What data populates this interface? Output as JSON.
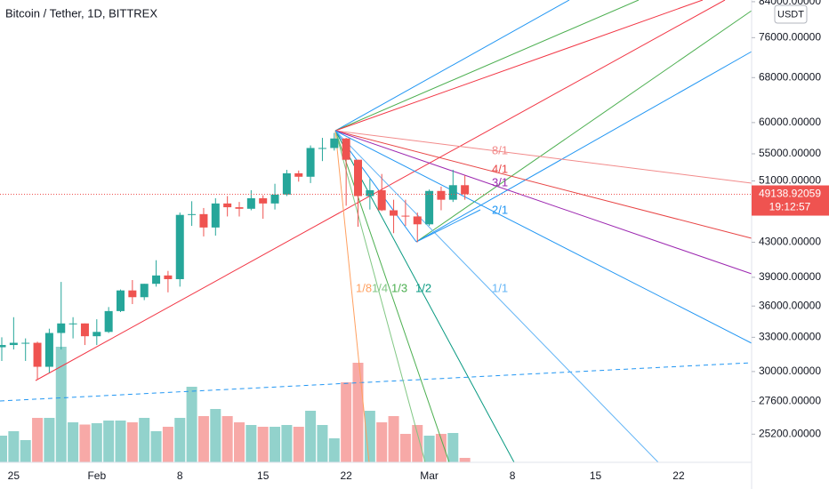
{
  "chart_data": {
    "type": "candlestick",
    "title": "Bitcoin / Tether, 1D, BITTREX",
    "currency": "USDT",
    "countdown": "19:12:57",
    "categories": [
      null,
      "25",
      null,
      null,
      null,
      null,
      null,
      null,
      "Feb",
      null,
      null,
      null,
      null,
      null,
      null,
      "8",
      null,
      null,
      null,
      null,
      null,
      null,
      "15",
      null,
      null,
      null,
      null,
      null,
      null,
      "22",
      null,
      null,
      null,
      null,
      null,
      null,
      "Mar",
      null,
      null,
      null,
      null,
      null,
      null,
      "8",
      null,
      null,
      null,
      null,
      null,
      null,
      "15",
      null,
      null,
      null,
      null,
      null,
      null,
      "22",
      null,
      null,
      null,
      null,
      null
    ],
    "open": [
      32100,
      32300,
      32500,
      32500,
      30400,
      33400,
      34300,
      34300,
      33100,
      33500,
      35500,
      37600,
      36900,
      38300,
      39200,
      38800,
      46400,
      46500,
      44800,
      47900,
      47400,
      47200,
      48600,
      47900,
      49100,
      52100,
      51600,
      55900,
      55900,
      57400,
      54100,
      48900,
      49700,
      47000,
      46300,
      46200,
      45200,
      49600,
      48400,
      50400,
      null,
      null,
      null,
      null,
      null,
      null,
      null,
      null,
      null,
      null,
      null,
      null,
      null,
      null,
      null,
      null,
      null,
      null,
      null,
      null,
      null,
      null,
      null
    ],
    "high": [
      33000,
      34900,
      32900,
      32600,
      33800,
      38500,
      34900,
      34300,
      34700,
      35900,
      37700,
      38700,
      38300,
      40900,
      39700,
      46700,
      48200,
      47300,
      48600,
      48900,
      48100,
      49700,
      49000,
      50600,
      52600,
      52500,
      56300,
      57500,
      58300,
      57500,
      54100,
      51300,
      52000,
      48400,
      48400,
      46700,
      49800,
      50200,
      52600,
      51800,
      null,
      null,
      null,
      null,
      null,
      null,
      null,
      null,
      null,
      null,
      null,
      null,
      null,
      null,
      null,
      null,
      null,
      null,
      null,
      null,
      null,
      null,
      null
    ],
    "low": [
      30900,
      31900,
      30900,
      29300,
      29900,
      31900,
      32900,
      32300,
      32300,
      33400,
      35400,
      36200,
      36600,
      38000,
      37400,
      38000,
      45000,
      43700,
      43800,
      46200,
      46200,
      47000,
      45900,
      47100,
      48900,
      50900,
      50700,
      53900,
      55500,
      47600,
      44900,
      47100,
      46900,
      44100,
      45000,
      43000,
      45000,
      47000,
      48100,
      48400,
      null,
      null,
      null,
      null,
      null,
      null,
      null,
      null,
      null,
      null,
      null,
      null,
      null,
      null,
      null,
      null,
      null,
      null,
      null,
      null,
      null,
      null,
      null
    ],
    "close": [
      32300,
      32500,
      32500,
      30400,
      33400,
      34300,
      34300,
      33100,
      33500,
      35500,
      37600,
      36900,
      38300,
      39200,
      38800,
      46400,
      46500,
      44800,
      47900,
      47400,
      47200,
      48600,
      47900,
      49100,
      52100,
      51600,
      55900,
      55900,
      57400,
      54100,
      48900,
      49700,
      47000,
      46300,
      46200,
      45200,
      49600,
      48400,
      50400,
      49138.92059,
      null,
      null,
      null,
      null,
      null,
      null,
      null,
      null,
      null,
      null,
      null,
      null,
      null,
      null,
      null,
      null,
      null,
      null,
      null,
      null,
      null,
      null,
      null
    ],
    "volume": [
      1200,
      1400,
      1000,
      2000,
      2000,
      5200,
      1800,
      1700,
      1760,
      1880,
      1880,
      1800,
      2000,
      1400,
      1600,
      2000,
      3400,
      2080,
      2400,
      2080,
      1800,
      1680,
      1600,
      1600,
      1680,
      1600,
      2320,
      1680,
      1080,
      3600,
      4480,
      2320,
      1800,
      2080,
      1280,
      1680,
      1200,
      1280,
      1320,
      200,
      null,
      null,
      null,
      null,
      null,
      null,
      null,
      null,
      null,
      null,
      null,
      null,
      null,
      null,
      null,
      null,
      null,
      null,
      null,
      null,
      null,
      null,
      null
    ],
    "up_color": "#26a69a",
    "down_color": "#ef5350",
    "log_scale": true,
    "ylim": [
      23300,
      84400
    ],
    "yticks": [
      {
        "value": 25200,
        "label": "25200.00000"
      },
      {
        "value": 27600,
        "label": "27600.00000"
      },
      {
        "value": 30000,
        "label": "30000.00000"
      },
      {
        "value": 33000,
        "label": "33000.00000"
      },
      {
        "value": 36000,
        "label": "36000.00000"
      },
      {
        "value": 39000,
        "label": "39000.00000"
      },
      {
        "value": 43000,
        "label": "43000.00000"
      },
      {
        "value": 51000,
        "label": "51000.00000"
      },
      {
        "value": 55000,
        "label": "55000.00000"
      },
      {
        "value": 60000,
        "label": "60000.00000"
      },
      {
        "value": 68000,
        "label": "68000.00000"
      },
      {
        "value": 76000,
        "label": "76000.00000"
      },
      {
        "value": 84000,
        "label": "84000.00000"
      }
    ],
    "fan_labels": [
      "8/1",
      "4/1",
      "3/1",
      "2/1",
      "1/1",
      "1/2",
      "1/3",
      "1/4",
      "1/8"
    ]
  }
}
